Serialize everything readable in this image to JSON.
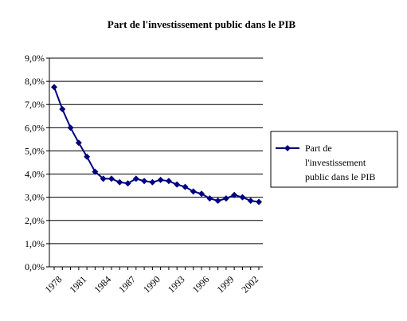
{
  "chart_data": {
    "type": "line",
    "title": "Part de l'investissement public dans le PIB",
    "xlabel": "",
    "ylabel": "",
    "x": [
      1978,
      1979,
      1980,
      1981,
      1982,
      1983,
      1984,
      1985,
      1986,
      1987,
      1988,
      1989,
      1990,
      1991,
      1992,
      1993,
      1994,
      1995,
      1996,
      1997,
      1998,
      1999,
      2000,
      2001,
      2002,
      2003
    ],
    "x_tick_labels": [
      "1978",
      "1981",
      "1984",
      "1987",
      "1990",
      "1993",
      "1996",
      "1999",
      "2002"
    ],
    "y_tick_labels": [
      "0,0%",
      "1,0%",
      "2,0%",
      "3,0%",
      "4,0%",
      "5,0%",
      "6,0%",
      "7,0%",
      "8,0%",
      "9,0%"
    ],
    "ylim": [
      0,
      9
    ],
    "y_unit": "%",
    "grid": "horizontal",
    "legend_position": "right",
    "series": [
      {
        "name": "Part de l'investissement public dans le PIB",
        "color": "#000080",
        "marker": "diamond",
        "values": [
          7.75,
          6.8,
          6.0,
          5.35,
          4.75,
          4.1,
          3.8,
          3.8,
          3.65,
          3.6,
          3.8,
          3.7,
          3.65,
          3.75,
          3.7,
          3.55,
          3.45,
          3.25,
          3.15,
          2.95,
          2.85,
          2.95,
          3.1,
          3.0,
          2.85,
          2.8
        ]
      }
    ],
    "legend": {
      "lines": [
        "Part de",
        "l'investissement",
        "public dans le PIB"
      ]
    }
  }
}
